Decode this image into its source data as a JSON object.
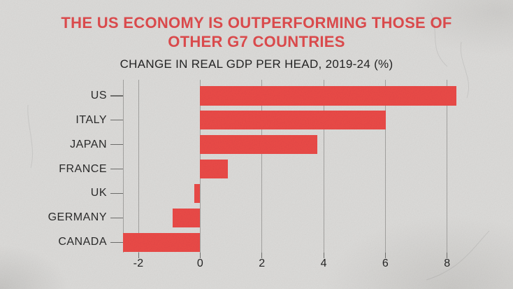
{
  "header": {
    "title_line1": "THE US ECONOMY IS OUTPERFORMING THOSE OF",
    "title_line2": "OTHER G7 COUNTRIES",
    "subtitle": "CHANGE IN REAL GDP PER HEAD, 2019-24 (%)"
  },
  "chart_data": {
    "type": "bar",
    "orientation": "horizontal",
    "title": "THE US ECONOMY IS OUTPERFORMING THOSE OF OTHER G7 COUNTRIES",
    "subtitle": "CHANGE IN REAL GDP PER HEAD, 2019-24 (%)",
    "categories": [
      "US",
      "ITALY",
      "JAPAN",
      "FRANCE",
      "UK",
      "GERMANY",
      "CANADA"
    ],
    "values": [
      8.3,
      6.0,
      3.8,
      0.9,
      -0.2,
      -0.9,
      -2.5
    ],
    "xlabel": "",
    "ylabel": "",
    "xlim": [
      -2.5,
      8.5
    ],
    "xticks": [
      -2,
      0,
      2,
      4,
      6,
      8
    ],
    "xtick_labels": [
      "-2",
      "0",
      "2",
      "4",
      "6",
      "8"
    ],
    "grid": "vertical-gridlines-on",
    "legend": "none"
  },
  "colors": {
    "background": "#dcdbd9",
    "bar": "#ea4a47",
    "title": "#de4b4d",
    "text": "#242424",
    "gridline": "#a3a2a0"
  }
}
